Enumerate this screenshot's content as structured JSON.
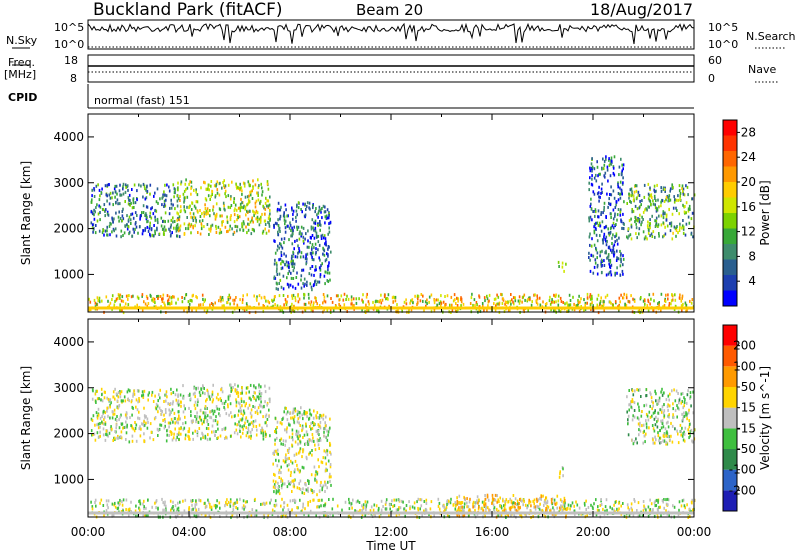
{
  "header": {
    "station": "Buckland Park (fitACF)",
    "beam": "Beam 20",
    "date": "18/Aug/2017"
  },
  "noise_panel": {
    "left_label": "N.Sky",
    "right_label": "N.Search",
    "ticks": [
      "10^5",
      "10^0"
    ]
  },
  "freq_panel": {
    "left_label_1": "Freq.",
    "left_label_2": "[MHz]",
    "left_ticks": [
      "18",
      "8"
    ],
    "right_label": "Nave",
    "right_ticks": [
      "60",
      "0"
    ]
  },
  "cpid_panel": {
    "label": "CPID",
    "mode": "normal (fast) 151"
  },
  "time_axis": {
    "label": "Time UT",
    "ticks": [
      "00:00",
      "04:00",
      "08:00",
      "12:00",
      "16:00",
      "20:00",
      "00:00"
    ]
  },
  "chart_data": [
    {
      "type": "heatmap",
      "title": "",
      "xlabel": "Time UT",
      "ylabel": "Slant Range [km]",
      "xlim": [
        0,
        24
      ],
      "ylim": [
        180,
        4500
      ],
      "y_ticks": [
        "1000",
        "2000",
        "3000",
        "4000"
      ],
      "colorbar": {
        "label": "Power [dB]",
        "ticks": [
          "4",
          "8",
          "12",
          "16",
          "20",
          "24",
          "28"
        ],
        "range": [
          0,
          30
        ],
        "colors": [
          "#0000ff",
          "#1d3fb0",
          "#2a5f8f",
          "#3e8c6c",
          "#38a838",
          "#7cd200",
          "#cfe600",
          "#ffcc00",
          "#ff9900",
          "#ff6600",
          "#ff3300",
          "#ff0000"
        ]
      },
      "regions": [
        {
          "t": [
            0.1,
            3.6
          ],
          "r": [
            1850,
            3000
          ],
          "value": 8
        },
        {
          "t": [
            3.5,
            7.2
          ],
          "r": [
            1900,
            3100
          ],
          "value": 15
        },
        {
          "t": [
            0,
            24
          ],
          "r": [
            200,
            600
          ],
          "value": 18
        },
        {
          "t": [
            7.3,
            9.6
          ],
          "r": [
            700,
            2600
          ],
          "value": 6
        },
        {
          "t": [
            18.6,
            18.9
          ],
          "r": [
            1050,
            1300
          ],
          "value": 12
        },
        {
          "t": [
            21.3,
            24
          ],
          "r": [
            1800,
            3000
          ],
          "value": 11
        },
        {
          "t": [
            19.8,
            21.2
          ],
          "r": [
            1000,
            3600
          ],
          "value": 6
        }
      ]
    },
    {
      "type": "heatmap",
      "title": "",
      "xlabel": "Time UT",
      "ylabel": "Slant Range [km]",
      "xlim": [
        0,
        24
      ],
      "ylim": [
        180,
        4500
      ],
      "y_ticks": [
        "1000",
        "2000",
        "3000",
        "4000"
      ],
      "colorbar": {
        "label": "Velocity [m s^-1]",
        "ticks": [
          "200",
          "100",
          "50",
          "15",
          "-15",
          "-50",
          "-100",
          "-200"
        ],
        "range": [
          -250,
          250
        ],
        "colors": [
          "#1e1eb4",
          "#2c64c8",
          "#2f8a4a",
          "#3fbf3f",
          "#bfbfbf",
          "#ffd400",
          "#ff9a00",
          "#ff5a00",
          "#ff0000"
        ]
      },
      "regions": [
        {
          "t": [
            0.1,
            3.6
          ],
          "r": [
            1850,
            3000
          ],
          "value": 0
        },
        {
          "t": [
            3.5,
            7.2
          ],
          "r": [
            1900,
            3100
          ],
          "value": 0
        },
        {
          "t": [
            0,
            24
          ],
          "r": [
            200,
            600
          ],
          "value": 0
        },
        {
          "t": [
            14.5,
            19
          ],
          "r": [
            200,
            700
          ],
          "value": 60
        },
        {
          "t": [
            7.3,
            9.6
          ],
          "r": [
            700,
            2600
          ],
          "value": 0
        },
        {
          "t": [
            18.6,
            18.9
          ],
          "r": [
            1050,
            1300
          ],
          "value": 0
        },
        {
          "t": [
            21.3,
            24
          ],
          "r": [
            1800,
            3000
          ],
          "value": -20
        }
      ]
    }
  ]
}
